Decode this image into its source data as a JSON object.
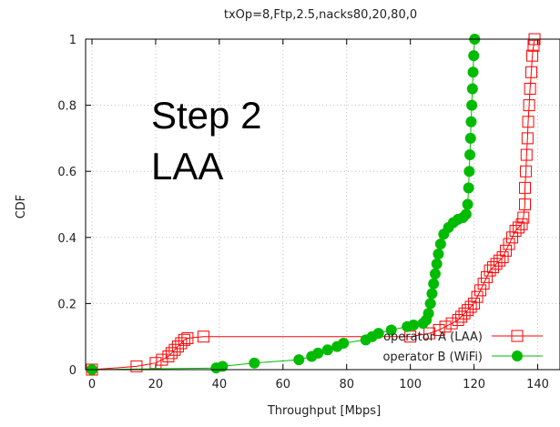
{
  "chart_data": {
    "type": "line",
    "title": "txOp=8,Ftp,2.5,nacks80,20,80,0",
    "xlabel": "Throughput [Mbps]",
    "ylabel": "CDF",
    "xlim": [
      -2,
      147
    ],
    "ylim": [
      0,
      1
    ],
    "x_ticks": [
      "0",
      "20",
      "40",
      "60",
      "80",
      "100",
      "120",
      "140"
    ],
    "y_ticks": [
      "0",
      "0.2",
      "0.4",
      "0.6",
      "0.8",
      "1"
    ],
    "grid": true,
    "legend_position": "bottom-right",
    "annotation": {
      "line1": "Step 2",
      "line2": "LAA"
    },
    "series": [
      {
        "name": "operator A (LAA)",
        "color": "#ff0000",
        "marker": "open-square",
        "points": [
          [
            0,
            0
          ],
          [
            14,
            0.01
          ],
          [
            20,
            0.02
          ],
          [
            22,
            0.03
          ],
          [
            24,
            0.04
          ],
          [
            25,
            0.05
          ],
          [
            26,
            0.06
          ],
          [
            27,
            0.07
          ],
          [
            28,
            0.08
          ],
          [
            29,
            0.09
          ],
          [
            30,
            0.095
          ],
          [
            35,
            0.1
          ],
          [
            100,
            0.1
          ],
          [
            106,
            0.11
          ],
          [
            109,
            0.12
          ],
          [
            111,
            0.13
          ],
          [
            113,
            0.14
          ],
          [
            115,
            0.15
          ],
          [
            116,
            0.16
          ],
          [
            117,
            0.17
          ],
          [
            118,
            0.18
          ],
          [
            119,
            0.19
          ],
          [
            120,
            0.2
          ],
          [
            121,
            0.22
          ],
          [
            122,
            0.24
          ],
          [
            123,
            0.26
          ],
          [
            124,
            0.28
          ],
          [
            125,
            0.3
          ],
          [
            126,
            0.31
          ],
          [
            127,
            0.32
          ],
          [
            128,
            0.33
          ],
          [
            129,
            0.34
          ],
          [
            130,
            0.36
          ],
          [
            131,
            0.38
          ],
          [
            132,
            0.4
          ],
          [
            133,
            0.42
          ],
          [
            134,
            0.43
          ],
          [
            135,
            0.44
          ],
          [
            135.5,
            0.46
          ],
          [
            136,
            0.5
          ],
          [
            136,
            0.55
          ],
          [
            136.3,
            0.6
          ],
          [
            136.5,
            0.65
          ],
          [
            136.8,
            0.7
          ],
          [
            137,
            0.75
          ],
          [
            137.3,
            0.8
          ],
          [
            137.6,
            0.85
          ],
          [
            138,
            0.9
          ],
          [
            138.3,
            0.95
          ],
          [
            138.7,
            0.98
          ],
          [
            139,
            1.0
          ]
        ]
      },
      {
        "name": "operator B (WiFi)",
        "color": "#00bb00",
        "marker": "filled-circle",
        "points": [
          [
            0,
            0
          ],
          [
            39,
            0.005
          ],
          [
            41,
            0.01
          ],
          [
            51,
            0.02
          ],
          [
            65,
            0.03
          ],
          [
            69,
            0.04
          ],
          [
            71,
            0.05
          ],
          [
            74,
            0.06
          ],
          [
            77,
            0.07
          ],
          [
            79,
            0.08
          ],
          [
            86,
            0.09
          ],
          [
            88,
            0.1
          ],
          [
            90,
            0.11
          ],
          [
            94,
            0.12
          ],
          [
            99,
            0.13
          ],
          [
            101,
            0.135
          ],
          [
            104,
            0.14
          ],
          [
            105,
            0.15
          ],
          [
            105.7,
            0.17
          ],
          [
            106.3,
            0.2
          ],
          [
            106.8,
            0.23
          ],
          [
            107.3,
            0.26
          ],
          [
            107.8,
            0.29
          ],
          [
            108.3,
            0.32
          ],
          [
            108.8,
            0.35
          ],
          [
            109.5,
            0.38
          ],
          [
            110.5,
            0.41
          ],
          [
            112,
            0.43
          ],
          [
            113.5,
            0.445
          ],
          [
            115,
            0.455
          ],
          [
            116.5,
            0.46
          ],
          [
            117.5,
            0.47
          ],
          [
            118,
            0.5
          ],
          [
            118.3,
            0.55
          ],
          [
            118.5,
            0.6
          ],
          [
            118.7,
            0.65
          ],
          [
            118.9,
            0.7
          ],
          [
            119.1,
            0.75
          ],
          [
            119.3,
            0.8
          ],
          [
            119.5,
            0.85
          ],
          [
            119.7,
            0.9
          ],
          [
            119.9,
            0.95
          ],
          [
            120.2,
            1.0
          ]
        ]
      }
    ]
  }
}
